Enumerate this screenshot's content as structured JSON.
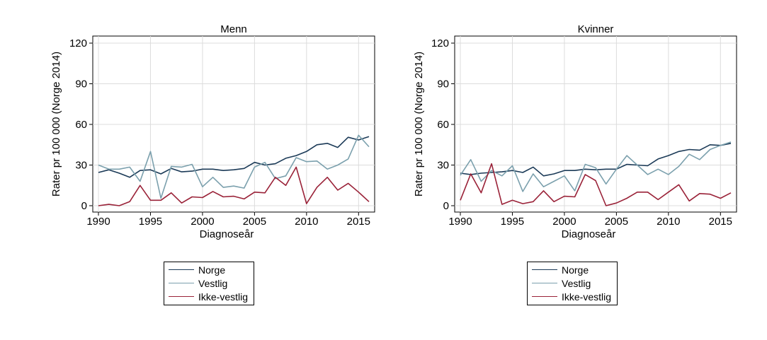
{
  "chart_data": [
    {
      "type": "line",
      "title": "Menn",
      "xlabel": "Diagnoseår",
      "ylabel": "Rater pr 100 000 (Norge 2014)",
      "xlim": [
        1990,
        2016
      ],
      "ylim": [
        0,
        120
      ],
      "xticks": [
        "1990",
        "1995",
        "2000",
        "2005",
        "2010",
        "2015"
      ],
      "yticks": [
        "0",
        "30",
        "60",
        "90",
        "120"
      ],
      "grid": true,
      "legend_position": "bottom",
      "x": [
        1990,
        1991,
        1992,
        1993,
        1994,
        1995,
        1996,
        1997,
        1998,
        1999,
        2000,
        2001,
        2002,
        2003,
        2004,
        2005,
        2006,
        2007,
        2008,
        2009,
        2010,
        2011,
        2012,
        2013,
        2014,
        2015,
        2016
      ],
      "series": [
        {
          "name": "Norge",
          "color": "#1b3a57",
          "values": [
            24.5,
            26.5,
            24,
            21,
            26,
            26.5,
            23.5,
            27.5,
            25,
            25.5,
            27,
            27,
            26,
            26.5,
            27.5,
            32,
            30,
            31,
            35,
            37,
            40,
            45,
            46,
            43,
            50.5,
            48.5,
            51
          ]
        },
        {
          "name": "Vestlig",
          "color": "#7ba0ad",
          "values": [
            30,
            27,
            27,
            28.5,
            18,
            40,
            5.5,
            29,
            28.5,
            30.5,
            14,
            21,
            13.5,
            14.5,
            13,
            28.5,
            32,
            20,
            22,
            35.5,
            32.5,
            33,
            27,
            30,
            34.5,
            52,
            43.5
          ]
        },
        {
          "name": "Ikke-vestlig",
          "color": "#9a2238",
          "values": [
            0,
            1,
            0,
            3,
            15,
            4,
            4,
            9.5,
            2,
            6.5,
            6,
            10.5,
            6.5,
            7,
            5,
            10,
            9.5,
            21,
            15,
            28.5,
            1.5,
            13.5,
            21,
            11.5,
            16.5,
            10,
            3
          ]
        }
      ]
    },
    {
      "type": "line",
      "title": "Kvinner",
      "xlabel": "Diagnoseår",
      "ylabel": "Rater pr 100 000 (Norge 2014)",
      "xlim": [
        1990,
        2016
      ],
      "ylim": [
        0,
        120
      ],
      "xticks": [
        "1990",
        "1995",
        "2000",
        "2005",
        "2010",
        "2015"
      ],
      "yticks": [
        "0",
        "30",
        "60",
        "90",
        "120"
      ],
      "grid": true,
      "legend_position": "bottom",
      "x": [
        1990,
        1991,
        1992,
        1993,
        1994,
        1995,
        1996,
        1997,
        1998,
        1999,
        2000,
        2001,
        2002,
        2003,
        2004,
        2005,
        2006,
        2007,
        2008,
        2009,
        2010,
        2011,
        2012,
        2013,
        2014,
        2015,
        2016
      ],
      "series": [
        {
          "name": "Norge",
          "color": "#1b3a57",
          "values": [
            24,
            23,
            24,
            24.5,
            25,
            26,
            24.5,
            28.5,
            22,
            23.5,
            26,
            26,
            27,
            26.5,
            27,
            27,
            30.5,
            30,
            29.5,
            34.5,
            37,
            40,
            41.5,
            41,
            45,
            44.5,
            46
          ]
        },
        {
          "name": "Vestlig",
          "color": "#7ba0ad",
          "values": [
            22.5,
            34,
            18,
            26,
            22,
            29.5,
            10.5,
            23.5,
            14,
            18,
            22,
            11,
            30.5,
            28,
            16,
            27,
            37,
            30,
            23,
            27,
            23,
            29,
            38,
            34,
            41.5,
            44.5,
            47
          ]
        },
        {
          "name": "Ikke-vestlig",
          "color": "#9a2238",
          "values": [
            4,
            23.5,
            9.5,
            31,
            1,
            4,
            1.5,
            3,
            11,
            3,
            7,
            6.5,
            23,
            18.5,
            0,
            2,
            5.5,
            10,
            10,
            4.5,
            10,
            15.5,
            3.5,
            9,
            8.5,
            5.5,
            9.5
          ]
        }
      ]
    }
  ]
}
